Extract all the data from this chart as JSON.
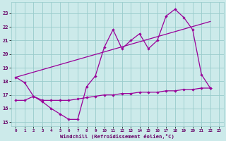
{
  "bg_color": "#cceaea",
  "grid_color": "#99cccc",
  "line_color": "#990099",
  "xlabel": "Windchill (Refroidissement éolien,°C)",
  "xlim": [
    -0.5,
    23.5
  ],
  "ylim": [
    14.7,
    23.8
  ],
  "yticks": [
    15,
    16,
    17,
    18,
    19,
    20,
    21,
    22,
    23
  ],
  "xticks": [
    0,
    1,
    2,
    3,
    4,
    5,
    6,
    7,
    8,
    9,
    10,
    11,
    12,
    13,
    14,
    15,
    16,
    17,
    18,
    19,
    20,
    21,
    22,
    23
  ],
  "jagged_x": [
    0,
    1,
    2,
    3,
    4,
    5,
    6,
    7,
    8,
    9,
    10,
    11,
    12,
    13,
    14,
    15,
    16,
    17,
    18,
    19,
    20,
    21,
    22
  ],
  "jagged_y": [
    18.3,
    17.9,
    16.9,
    16.5,
    16.0,
    15.6,
    15.2,
    15.2,
    17.6,
    18.4,
    20.5,
    21.8,
    20.4,
    21.0,
    21.5,
    20.4,
    21.0,
    22.8,
    23.3,
    22.7,
    21.8,
    18.5,
    17.5
  ],
  "trend_x": [
    0,
    22
  ],
  "trend_y": [
    18.3,
    22.4
  ],
  "flat_x": [
    0,
    1,
    2,
    3,
    4,
    5,
    6,
    7,
    8,
    9,
    10,
    11,
    12,
    13,
    14,
    15,
    16,
    17,
    18,
    19,
    20,
    21,
    22
  ],
  "flat_y": [
    16.6,
    16.6,
    16.9,
    16.6,
    16.6,
    16.6,
    16.6,
    16.7,
    16.8,
    16.9,
    17.0,
    17.0,
    17.1,
    17.1,
    17.2,
    17.2,
    17.2,
    17.3,
    17.3,
    17.4,
    17.4,
    17.5,
    17.5
  ]
}
